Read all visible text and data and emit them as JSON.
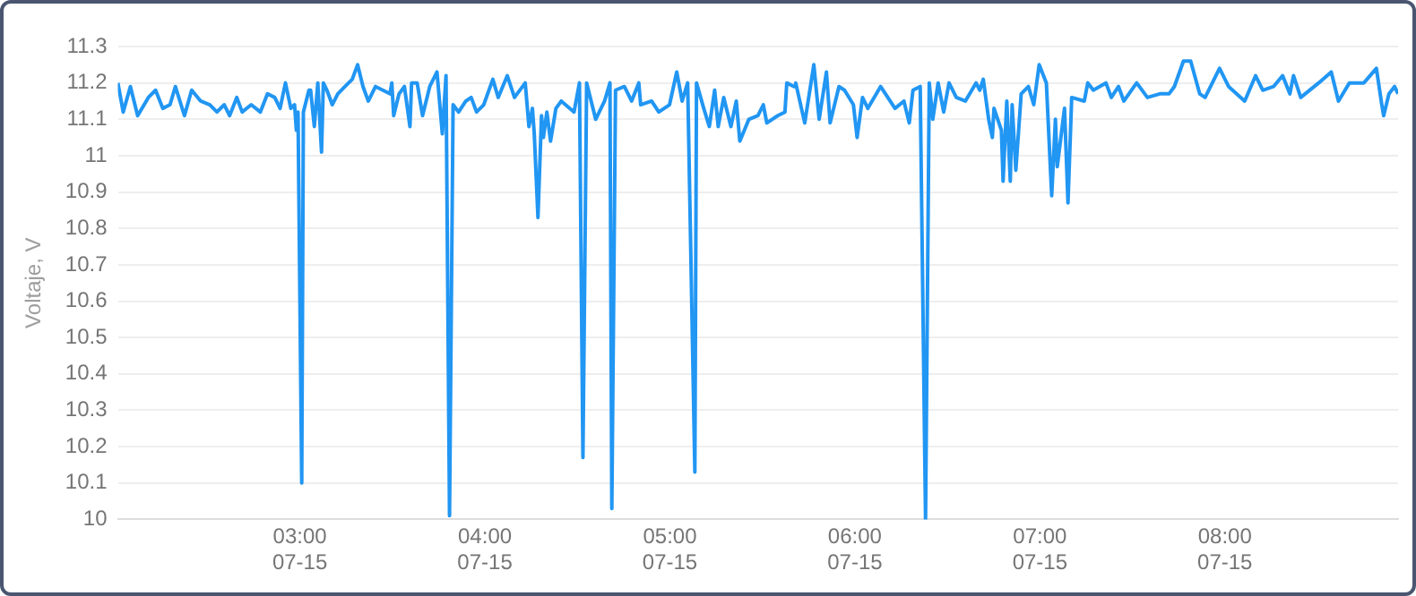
{
  "chart_data": {
    "type": "line",
    "ylabel": "Voltaje, V",
    "x": [
      "--07-15T02:00:58",
      "--07-15T02:02:42",
      "--07-15T02:05:02",
      "--07-15T02:07:23",
      "--07-15T02:10:52",
      "--07-15T02:13:12",
      "--07-15T02:15:32",
      "--07-15T02:17:53",
      "--07-15T02:19:37",
      "--07-15T02:22:34",
      "--07-15T02:24:54",
      "--07-15T02:27:50",
      "--07-15T02:30:47",
      "--07-15T02:33:07",
      "--07-15T02:35:28",
      "--07-15T02:37:12",
      "--07-15T02:39:32",
      "--07-15T02:41:17",
      "--07-15T02:44:13",
      "--07-15T02:47:10",
      "--07-15T02:49:30",
      "--07-15T02:51:50",
      "--07-15T02:53:35",
      "--07-15T02:55:19",
      "--07-15T02:57:04",
      "--07-15T02:58:16",
      "--07-15T02:58:52",
      "--07-15T02:59:24",
      "--07-15T03:00:36",
      "--07-15T03:01:08",
      "--07-15T03:02:56",
      "--07-15T03:03:29",
      "--07-15T03:04:41",
      "--07-15T03:05:49",
      "--07-15T03:07:01",
      "--07-15T03:07:37",
      "--07-15T03:08:46",
      "--07-15T03:10:30",
      "--07-15T03:12:18",
      "--07-15T03:14:38",
      "--07-15T03:16:59",
      "--07-15T03:18:43",
      "--07-15T03:20:28",
      "--07-15T03:22:12",
      "--07-15T03:24:32",
      "--07-15T03:26:53",
      "--07-15T03:29:13",
      "--07-15T03:29:49",
      "--07-15T03:30:25",
      "--07-15T03:32:10",
      "--07-15T03:33:54",
      "--07-15T03:35:42",
      "--07-15T03:36:14",
      "--07-15T03:38:02",
      "--07-15T03:39:47",
      "--07-15T03:42:07",
      "--07-15T03:44:28",
      "--07-15T03:46:12",
      "--07-15T03:47:24",
      "--07-15T03:48:32",
      "--07-15T03:49:41",
      "--07-15T03:51:29",
      "--07-15T03:53:49",
      "--07-15T03:55:34",
      "--07-15T03:57:18",
      "--07-15T03:59:38",
      "--07-15T04:02:35",
      "--07-15T04:04:19",
      "--07-15T04:07:16",
      "--07-15T04:09:36",
      "--07-15T04:13:05",
      "--07-15T04:14:17",
      "--07-15T04:15:25",
      "--07-15T04:16:01",
      "--07-15T04:17:13",
      "--07-15T04:18:22",
      "--07-15T04:18:58",
      "--07-15T04:20:06",
      "--07-15T04:21:18",
      "--07-15T04:23:02",
      "--07-15T04:24:47",
      "--07-15T04:28:55",
      "--07-15T04:30:40",
      "--07-15T04:31:48",
      "--07-15T04:33:00",
      "--07-15T04:35:56",
      "--07-15T04:38:49",
      "--07-15T04:40:34",
      "--07-15T04:41:10",
      "--07-15T04:42:22",
      "--07-15T04:45:14",
      "--07-15T04:47:35",
      "--07-15T04:49:55",
      "--07-15T04:50:31",
      "--07-15T04:54:04",
      "--07-15T04:56:24",
      "--07-15T04:58:08",
      "--07-15T04:59:53",
      "--07-15T05:02:13",
      "--07-15T05:03:58",
      "--07-15T05:05:46",
      "--07-15T05:08:06",
      "--07-15T05:08:38",
      "--07-15T05:10:59",
      "--07-15T05:12:47",
      "--07-15T05:14:31",
      "--07-15T05:15:40",
      "--07-15T05:17:28",
      "--07-15T05:19:48",
      "--07-15T05:21:32",
      "--07-15T05:22:41",
      "--07-15T05:25:37",
      "--07-15T05:28:34",
      "--07-15T05:30:18",
      "--07-15T05:31:26",
      "--07-15T05:34:59",
      "--07-15T05:37:19",
      "--07-15T05:37:55",
      "--07-15T05:40:16",
      "--07-15T05:40:48",
      "--07-15T05:43:44",
      "--07-15T05:46:41",
      "--07-15T05:48:25",
      "--07-15T05:50:46",
      "--07-15T05:51:58",
      "--07-15T05:54:50",
      "--07-15T05:56:38",
      "--07-15T05:59:31",
      "--07-15T06:00:43",
      "--07-15T06:02:28",
      "--07-15T06:04:12",
      "--07-15T06:08:20",
      "--07-15T06:13:01",
      "--07-15T06:15:54",
      "--07-15T06:17:38",
      "--07-15T06:18:50",
      "--07-15T06:21:11",
      "--07-15T06:22:55",
      "--07-15T06:24:07",
      "--07-15T06:25:16",
      "--07-15T06:27:00",
      "--07-15T06:28:48",
      "--07-15T06:30:32",
      "--07-15T06:32:53",
      "--07-15T06:35:49",
      "--07-15T06:39:18",
      "--07-15T06:40:30",
      "--07-15T06:41:38",
      "--07-15T06:43:23",
      "--07-15T06:44:35",
      "--07-15T06:45:07",
      "--07-15T06:47:31",
      "--07-15T06:48:04",
      "--07-15T06:49:16",
      "--07-15T06:50:24",
      "--07-15T06:51:00",
      "--07-15T06:52:12",
      "--07-15T06:53:56",
      "--07-15T06:56:17",
      "--07-15T06:58:01",
      "--07-15T06:59:46",
      "--07-15T07:02:06",
      "--07-15T07:03:50",
      "--07-15T07:05:02",
      "--07-15T07:05:38",
      "--07-15T07:07:59",
      "--07-15T07:09:07",
      "--07-15T07:10:19",
      "--07-15T07:14:24",
      "--07-15T07:15:32",
      "--07-15T07:17:20",
      "--07-15T07:21:25",
      "--07-15T07:23:10",
      "--07-15T07:25:30",
      "--07-15T07:27:14",
      "--07-15T07:31:23",
      "--07-15T07:34:52",
      "--07-15T07:38:56",
      "--07-15T07:41:53",
      "--07-15T07:43:37",
      "--07-15T07:46:34",
      "--07-15T07:48:54",
      "--07-15T07:51:50",
      "--07-15T07:53:35",
      "--07-15T07:58:16",
      "--07-15T08:01:12",
      "--07-15T08:06:25",
      "--07-15T08:09:58",
      "--07-15T08:12:18",
      "--07-15T08:15:47",
      "--07-15T08:18:43",
      "--07-15T08:21:04",
      "--07-15T08:22:16",
      "--07-15T08:24:36",
      "--07-15T08:30:25",
      "--07-15T08:34:30",
      "--07-15T08:36:50",
      "--07-15T08:40:23",
      "--07-15T08:45:04",
      "--07-15T08:49:08",
      "--07-15T08:50:53",
      "--07-15T08:51:29",
      "--07-15T08:53:13",
      "--07-15T08:55:01",
      "--07-15T08:56:10"
    ],
    "series": [
      {
        "color": "#2196f3",
        "values": [
          11.2,
          11.12,
          11.19,
          11.11,
          11.16,
          11.18,
          11.13,
          11.14,
          11.19,
          11.11,
          11.18,
          11.15,
          11.14,
          11.12,
          11.14,
          11.11,
          11.16,
          11.12,
          11.14,
          11.12,
          11.17,
          11.16,
          11.13,
          11.2,
          11.13,
          11.14,
          11.07,
          11.12,
          10.1,
          11.12,
          11.18,
          11.18,
          11.08,
          11.2,
          11.01,
          11.2,
          11.18,
          11.14,
          11.17,
          11.19,
          11.21,
          11.25,
          11.19,
          11.15,
          11.19,
          11.18,
          11.17,
          11.2,
          11.11,
          11.17,
          11.19,
          11.08,
          11.2,
          11.2,
          11.11,
          11.19,
          11.23,
          11.06,
          11.22,
          10.01,
          11.14,
          11.12,
          11.15,
          11.16,
          11.12,
          11.14,
          11.21,
          11.16,
          11.22,
          11.16,
          11.2,
          11.08,
          11.13,
          11.06,
          10.83,
          11.11,
          11.05,
          11.12,
          11.04,
          11.13,
          11.15,
          11.12,
          11.2,
          10.17,
          11.2,
          11.1,
          11.15,
          11.2,
          10.03,
          11.18,
          11.19,
          11.15,
          11.2,
          11.14,
          11.15,
          11.12,
          11.13,
          11.14,
          11.23,
          11.15,
          11.2,
          10.13,
          11.2,
          11.13,
          11.08,
          11.18,
          11.08,
          11.16,
          11.08,
          11.15,
          11.04,
          11.1,
          11.11,
          11.14,
          11.09,
          11.11,
          11.12,
          11.2,
          11.19,
          11.2,
          11.09,
          11.25,
          11.1,
          11.23,
          11.09,
          11.19,
          11.18,
          11.14,
          11.05,
          11.16,
          11.13,
          11.19,
          11.13,
          11.15,
          11.09,
          11.18,
          11.19,
          10.0,
          11.2,
          11.1,
          11.2,
          11.12,
          11.2,
          11.16,
          11.15,
          11.2,
          11.18,
          11.21,
          11.1,
          11.05,
          11.13,
          11.07,
          10.93,
          11.15,
          10.93,
          11.14,
          10.96,
          11.17,
          11.19,
          11.14,
          11.25,
          11.2,
          10.89,
          11.1,
          10.97,
          11.13,
          10.87,
          11.16,
          11.15,
          11.2,
          11.18,
          11.2,
          11.16,
          11.19,
          11.15,
          11.2,
          11.16,
          11.17,
          11.17,
          11.19,
          11.26,
          11.26,
          11.17,
          11.16,
          11.24,
          11.19,
          11.15,
          11.22,
          11.18,
          11.19,
          11.22,
          11.17,
          11.22,
          11.16,
          11.2,
          11.23,
          11.15,
          11.2,
          11.2,
          11.24,
          11.14,
          11.11,
          11.17,
          11.19,
          11.17
        ]
      }
    ],
    "xlim": [
      "--07-15T02:00:58",
      "--07-15T08:56:10"
    ],
    "xticks": [
      {
        "value": "--07-15T03:00",
        "label": "03:00\n07-15"
      },
      {
        "value": "--07-15T04:00",
        "label": "04:00\n07-15"
      },
      {
        "value": "--07-15T05:00",
        "label": "05:00\n07-15"
      },
      {
        "value": "--07-15T06:00",
        "label": "06:00\n07-15"
      },
      {
        "value": "--07-15T07:00",
        "label": "07:00\n07-15"
      },
      {
        "value": "--07-15T08:00",
        "label": "08:00\n07-15"
      }
    ],
    "ylim": [
      10,
      11.3
    ],
    "yticks": [
      10,
      10.1,
      10.2,
      10.3,
      10.4,
      10.5,
      10.6,
      10.7,
      10.8,
      10.9,
      11,
      11.1,
      11.2,
      11.3
    ],
    "grid": "y",
    "legend": false,
    "marker": "none",
    "line_style": "solid"
  }
}
